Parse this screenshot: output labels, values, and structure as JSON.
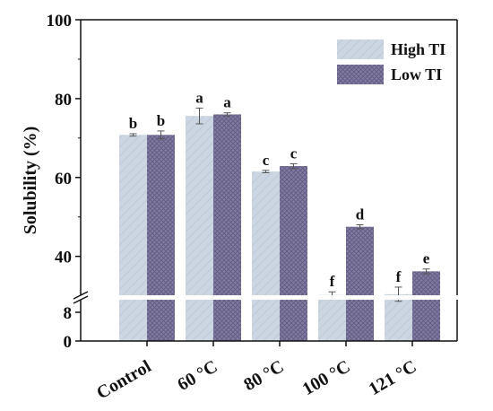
{
  "chart_data": {
    "type": "bar",
    "title": "",
    "xlabel": "",
    "ylabel": "Solubility (%)",
    "axis_break": {
      "from": 9,
      "to": 29
    },
    "ylim": [
      0,
      100
    ],
    "yticks": [
      "0",
      "8",
      "40",
      "60",
      "80",
      "100"
    ],
    "categories": [
      "Control",
      "60 °C",
      "80 °C",
      "100 °C",
      "121 °C"
    ],
    "legend_position": "top-right",
    "series": [
      {
        "name": "High TI",
        "color": "#c7d3e0",
        "pattern": "diagonal-hatch",
        "values": [
          70.8,
          75.6,
          61.5,
          30.2,
          30.4
        ],
        "errors": [
          0.3,
          2.0,
          0.3,
          0.8,
          1.8
        ],
        "letters": [
          "b",
          "a",
          "c",
          "f",
          "f"
        ]
      },
      {
        "name": "Low TI",
        "color": "#807a9f",
        "pattern": "crosshatch",
        "values": [
          70.8,
          76.0,
          62.9,
          47.5,
          36.2
        ],
        "errors": [
          1.0,
          0.4,
          0.6,
          0.5,
          0.6
        ],
        "letters": [
          "b",
          "a",
          "c",
          "d",
          "e"
        ]
      }
    ]
  }
}
